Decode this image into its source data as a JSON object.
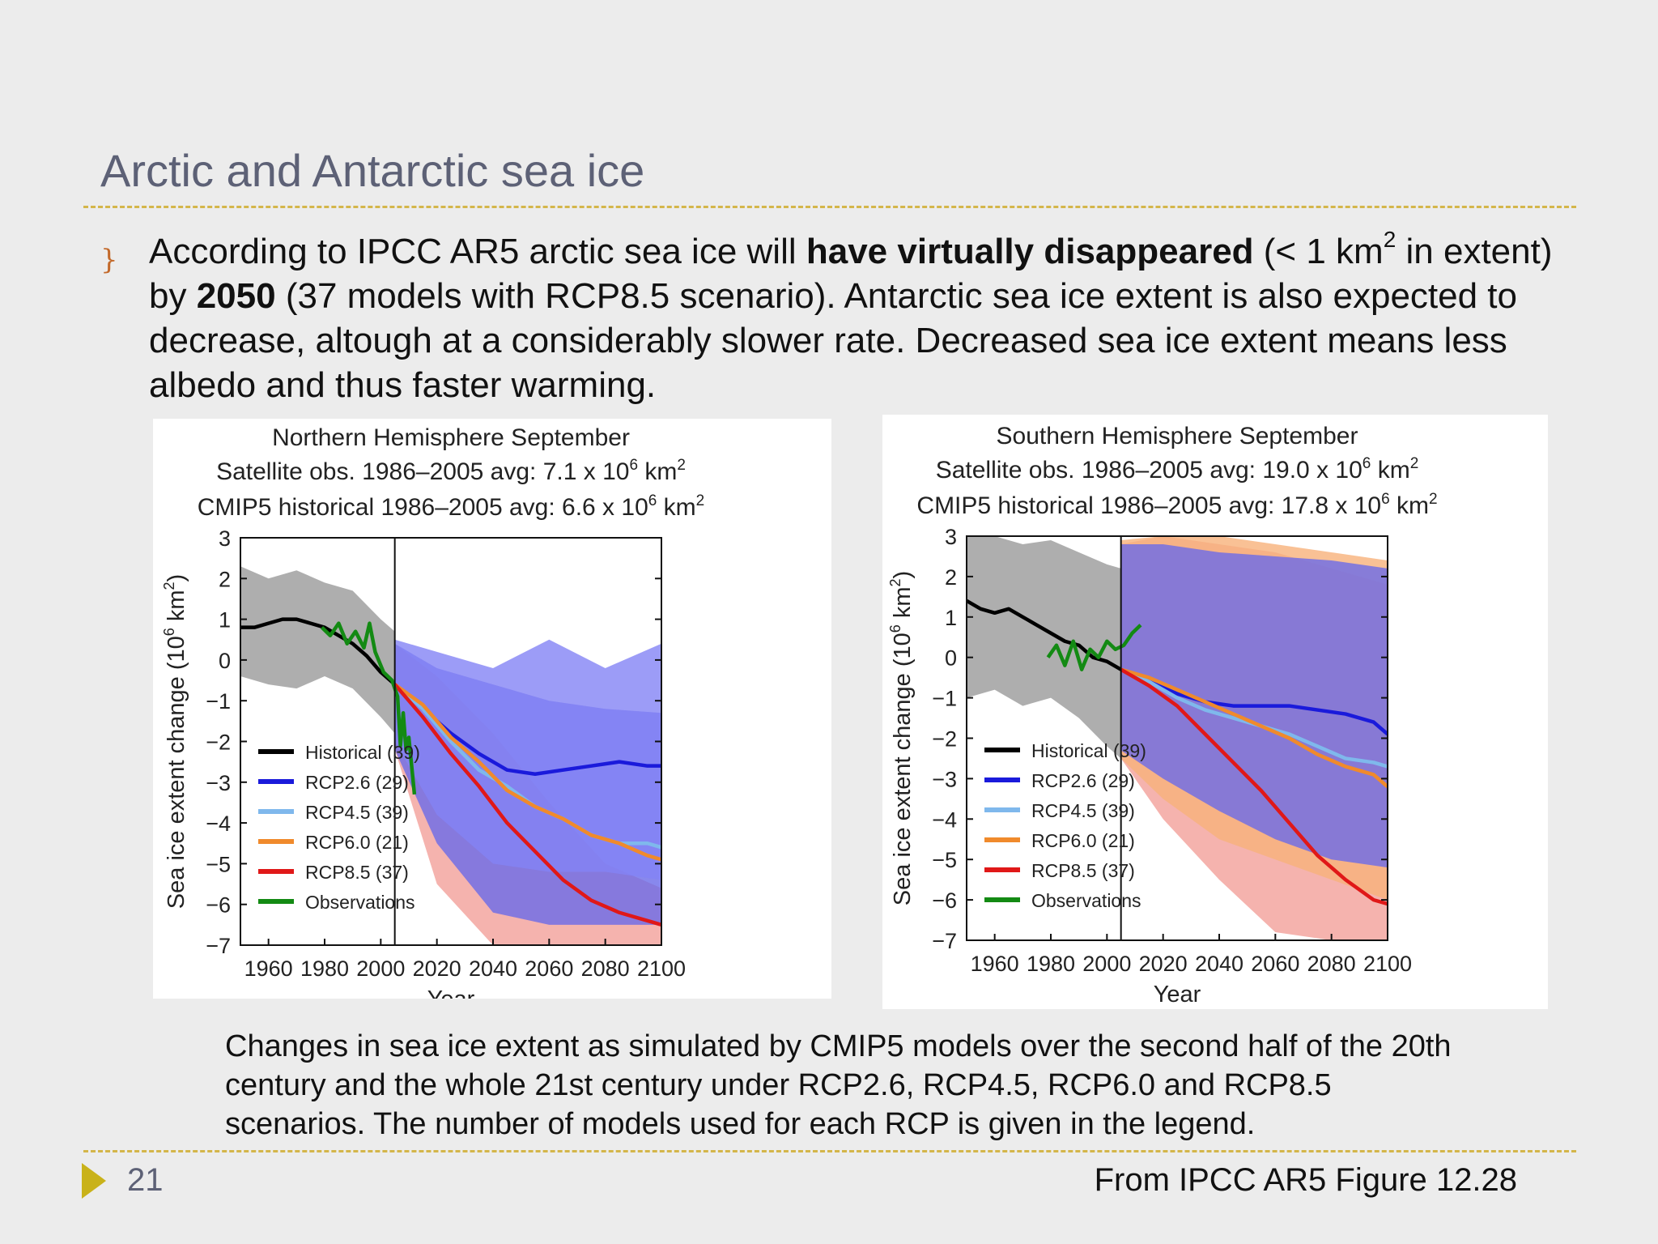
{
  "slide": {
    "title": "Arctic and Antarctic sea ice",
    "bullet_glyph": "}",
    "paragraph": {
      "p1": "According to IPCC AR5 arctic sea ice will ",
      "bold1": "have virtually disappeared",
      "p2": " (< 1 km",
      "sup1": "2",
      "p3": " in extent) by ",
      "bold2": "2050",
      "p4": " (37 models with RCP8.5 scenario).  Antarctic sea ice extent is also expected to decrease, altough at a considerably slower rate. Decreased sea ice extent means less albedo and thus faster warming."
    },
    "caption": "Changes in sea ice extent as simulated by CMIP5 models over the second half of the 20th century and the whole 21st century under RCP2.6, RCP4.5, RCP6.0 and RCP8.5 scenarios. The number of models used for each RCP is given in the legend.",
    "page_number": "21",
    "source": "From IPCC AR5 Figure 12.28",
    "colors": {
      "title": "#5d6176",
      "rule": "#d4b64a",
      "footer_triangle": "#c9b21a",
      "bullet": "#c3692a"
    }
  },
  "chart_data": [
    {
      "type": "line",
      "title": "Northern Hemisphere September",
      "subtitle_lines": [
        {
          "text": "Satellite obs. 1986–2005 avg: 7.1 x 10",
          "sup": "6",
          "unit": " km",
          "unit_sup": "2"
        },
        {
          "text": "CMIP5 historical 1986–2005 avg: 6.6 x 10",
          "sup": "6",
          "unit": " km",
          "unit_sup": "2"
        }
      ],
      "xlabel": "Year",
      "ylabel": "Sea ice extent change (10",
      "ylabel_sup": "6",
      "ylabel_unit": " km",
      "ylabel_unit_sup": "2",
      "ylabel_close": ")",
      "xlim": [
        1950,
        2100
      ],
      "ylim": [
        -7,
        3
      ],
      "xticks": [
        1960,
        1980,
        2000,
        2020,
        2040,
        2060,
        2080,
        2100
      ],
      "yticks": [
        3,
        2,
        1,
        0,
        -1,
        -2,
        -3,
        -4,
        -5,
        -6,
        -7
      ],
      "vline": 2005,
      "legend_position": "bottom-left",
      "legend": [
        {
          "label": "Historical (39)",
          "color": "#000000"
        },
        {
          "label": "RCP2.6 (29)",
          "color": "#1a1adb"
        },
        {
          "label": "RCP4.5 (39)",
          "color": "#7fb8ec"
        },
        {
          "label": "RCP6.0 (21)",
          "color": "#f08a2c"
        },
        {
          "label": "RCP8.5 (37)",
          "color": "#e01818"
        },
        {
          "label": "Observations",
          "color": "#138a13"
        }
      ],
      "bands": [
        {
          "name": "Historical",
          "color": "#9a9a9a",
          "x": [
            1950,
            1960,
            1970,
            1980,
            1990,
            2000,
            2005
          ],
          "lo": [
            -0.4,
            -0.6,
            -0.7,
            -0.4,
            -0.7,
            -1.4,
            -1.8
          ],
          "hi": [
            2.3,
            2.0,
            2.2,
            1.9,
            1.7,
            1.0,
            0.7
          ]
        },
        {
          "name": "RCP8.5",
          "color": "#f2a09a",
          "x": [
            2005,
            2020,
            2040,
            2060,
            2080,
            2100
          ],
          "lo": [
            -2.2,
            -5.5,
            -7.0,
            -7.0,
            -7.0,
            -7.0
          ],
          "hi": [
            0.4,
            -0.4,
            -1.8,
            -3.5,
            -5.0,
            -5.6
          ]
        },
        {
          "name": "RCP4.5",
          "color": "#6a6ae8",
          "x": [
            2005,
            2020,
            2040,
            2060,
            2080,
            2100
          ],
          "lo": [
            -2.2,
            -4.5,
            -6.2,
            -6.5,
            -6.5,
            -6.5
          ],
          "hi": [
            0.4,
            -0.2,
            -0.6,
            -1.0,
            -1.2,
            -1.3
          ]
        },
        {
          "name": "RCP2.6",
          "color": "#8383f5",
          "x": [
            2005,
            2020,
            2040,
            2060,
            2080,
            2100
          ],
          "lo": [
            -2.0,
            -3.8,
            -5.0,
            -5.2,
            -5.2,
            -5.4
          ],
          "hi": [
            0.5,
            0.2,
            -0.2,
            0.5,
            -0.2,
            0.4
          ]
        }
      ],
      "series": [
        {
          "name": "Historical",
          "color": "#000000",
          "x": [
            1950,
            1955,
            1960,
            1965,
            1970,
            1975,
            1980,
            1985,
            1990,
            1995,
            2000,
            2005
          ],
          "values": [
            0.8,
            0.8,
            0.9,
            1.0,
            1.0,
            0.9,
            0.8,
            0.6,
            0.4,
            0.1,
            -0.3,
            -0.6
          ]
        },
        {
          "name": "RCP2.6",
          "color": "#1a1adb",
          "x": [
            2005,
            2015,
            2025,
            2035,
            2045,
            2055,
            2065,
            2075,
            2085,
            2095,
            2100
          ],
          "values": [
            -0.6,
            -1.2,
            -1.8,
            -2.3,
            -2.7,
            -2.8,
            -2.7,
            -2.6,
            -2.5,
            -2.6,
            -2.6
          ]
        },
        {
          "name": "RCP4.5",
          "color": "#7fb8ec",
          "x": [
            2005,
            2015,
            2025,
            2035,
            2045,
            2055,
            2065,
            2075,
            2085,
            2095,
            2100
          ],
          "values": [
            -0.6,
            -1.2,
            -2.0,
            -2.7,
            -3.1,
            -3.6,
            -3.9,
            -4.3,
            -4.5,
            -4.5,
            -4.6
          ]
        },
        {
          "name": "RCP6.0",
          "color": "#f08a2c",
          "x": [
            2005,
            2015,
            2025,
            2035,
            2045,
            2055,
            2065,
            2075,
            2085,
            2095,
            2100
          ],
          "values": [
            -0.6,
            -1.1,
            -1.9,
            -2.5,
            -3.2,
            -3.6,
            -3.9,
            -4.3,
            -4.5,
            -4.8,
            -4.9
          ]
        },
        {
          "name": "RCP8.5",
          "color": "#e01818",
          "x": [
            2005,
            2015,
            2025,
            2035,
            2045,
            2055,
            2065,
            2075,
            2085,
            2095,
            2100
          ],
          "values": [
            -0.6,
            -1.4,
            -2.3,
            -3.1,
            -4.0,
            -4.7,
            -5.4,
            -5.9,
            -6.2,
            -6.4,
            -6.5
          ]
        },
        {
          "name": "Observations",
          "color": "#138a13",
          "x": [
            1979,
            1982,
            1985,
            1988,
            1991,
            1994,
            1996,
            1998,
            2001,
            2004,
            2006,
            2007,
            2008,
            2009,
            2010,
            2012
          ],
          "values": [
            0.8,
            0.6,
            0.9,
            0.4,
            0.7,
            0.3,
            0.9,
            0.2,
            -0.3,
            -0.5,
            -0.9,
            -2.1,
            -1.3,
            -2.2,
            -1.9,
            -3.3
          ]
        }
      ]
    },
    {
      "type": "line",
      "title": "Southern Hemisphere September",
      "subtitle_lines": [
        {
          "text": "Satellite obs. 1986–2005 avg: 19.0 x 10",
          "sup": "6",
          "unit": " km",
          "unit_sup": "2"
        },
        {
          "text": "CMIP5 historical 1986–2005 avg: 17.8 x 10",
          "sup": "6",
          "unit": " km",
          "unit_sup": "2"
        }
      ],
      "xlabel": "Year",
      "ylabel": "Sea ice extent change (10",
      "ylabel_sup": "6",
      "ylabel_unit": " km",
      "ylabel_unit_sup": "2",
      "ylabel_close": ")",
      "xlim": [
        1950,
        2100
      ],
      "ylim": [
        -7,
        3
      ],
      "xticks": [
        1960,
        1980,
        2000,
        2020,
        2040,
        2060,
        2080,
        2100
      ],
      "yticks": [
        3,
        2,
        1,
        0,
        -1,
        -2,
        -3,
        -4,
        -5,
        -6,
        -7
      ],
      "vline": 2005,
      "legend_position": "bottom-left",
      "legend": [
        {
          "label": "Historical (39)",
          "color": "#000000"
        },
        {
          "label": "RCP2.6 (29)",
          "color": "#1a1adb"
        },
        {
          "label": "RCP4.5 (39)",
          "color": "#7fb8ec"
        },
        {
          "label": "RCP6.0 (21)",
          "color": "#f08a2c"
        },
        {
          "label": "RCP8.5 (37)",
          "color": "#e01818"
        },
        {
          "label": "Observations",
          "color": "#138a13"
        }
      ],
      "bands": [
        {
          "name": "Historical",
          "color": "#9a9a9a",
          "x": [
            1950,
            1960,
            1970,
            1980,
            1990,
            2000,
            2005
          ],
          "lo": [
            -1.0,
            -0.8,
            -1.2,
            -1.0,
            -1.5,
            -2.2,
            -2.5
          ],
          "hi": [
            3.0,
            3.0,
            2.8,
            2.9,
            2.6,
            2.3,
            2.2
          ]
        },
        {
          "name": "RCP8.5",
          "color": "#f2a09a",
          "x": [
            2005,
            2020,
            2040,
            2060,
            2080,
            2100
          ],
          "lo": [
            -2.5,
            -4.0,
            -5.5,
            -6.8,
            -7.0,
            -7.0
          ],
          "hi": [
            2.8,
            3.0,
            2.8,
            2.6,
            2.2,
            1.8
          ]
        },
        {
          "name": "RCP6.0",
          "color": "#f7b27a",
          "x": [
            2005,
            2020,
            2040,
            2060,
            2080,
            2100
          ],
          "lo": [
            -2.5,
            -3.5,
            -4.5,
            -5.0,
            -5.5,
            -6.0
          ],
          "hi": [
            2.9,
            3.0,
            3.0,
            2.8,
            2.6,
            2.4
          ]
        },
        {
          "name": "RCP2.6",
          "color": "#6a6ae8",
          "x": [
            2005,
            2020,
            2040,
            2060,
            2080,
            2100
          ],
          "lo": [
            -2.3,
            -3.0,
            -3.8,
            -4.5,
            -5.0,
            -5.2
          ],
          "hi": [
            2.8,
            2.8,
            2.6,
            2.5,
            2.4,
            2.2
          ]
        }
      ],
      "series": [
        {
          "name": "Historical",
          "color": "#000000",
          "x": [
            1950,
            1955,
            1960,
            1965,
            1970,
            1975,
            1980,
            1985,
            1990,
            1995,
            2000,
            2005
          ],
          "values": [
            1.4,
            1.2,
            1.1,
            1.2,
            1.0,
            0.8,
            0.6,
            0.4,
            0.3,
            0.0,
            -0.1,
            -0.3
          ]
        },
        {
          "name": "RCP2.6",
          "color": "#1a1adb",
          "x": [
            2005,
            2015,
            2025,
            2035,
            2045,
            2055,
            2065,
            2075,
            2085,
            2095,
            2100
          ],
          "values": [
            -0.3,
            -0.6,
            -0.9,
            -1.1,
            -1.2,
            -1.2,
            -1.2,
            -1.3,
            -1.4,
            -1.6,
            -1.9
          ]
        },
        {
          "name": "RCP4.5",
          "color": "#7fb8ec",
          "x": [
            2005,
            2015,
            2025,
            2035,
            2045,
            2055,
            2065,
            2075,
            2085,
            2095,
            2100
          ],
          "values": [
            -0.3,
            -0.6,
            -1.0,
            -1.3,
            -1.5,
            -1.7,
            -1.9,
            -2.2,
            -2.5,
            -2.6,
            -2.7
          ]
        },
        {
          "name": "RCP6.0",
          "color": "#f08a2c",
          "x": [
            2005,
            2015,
            2025,
            2035,
            2045,
            2055,
            2065,
            2075,
            2085,
            2095,
            2100
          ],
          "values": [
            -0.3,
            -0.5,
            -0.8,
            -1.1,
            -1.4,
            -1.7,
            -2.0,
            -2.4,
            -2.7,
            -2.9,
            -3.2
          ]
        },
        {
          "name": "RCP8.5",
          "color": "#e01818",
          "x": [
            2005,
            2015,
            2025,
            2035,
            2045,
            2055,
            2065,
            2075,
            2085,
            2095,
            2100
          ],
          "values": [
            -0.3,
            -0.7,
            -1.2,
            -1.9,
            -2.6,
            -3.3,
            -4.1,
            -4.9,
            -5.5,
            -6.0,
            -6.1
          ]
        },
        {
          "name": "Observations",
          "color": "#138a13",
          "x": [
            1979,
            1982,
            1985,
            1988,
            1991,
            1994,
            1997,
            2000,
            2003,
            2006,
            2009,
            2012
          ],
          "values": [
            0.0,
            0.3,
            -0.2,
            0.4,
            -0.3,
            0.2,
            0.0,
            0.4,
            0.2,
            0.3,
            0.6,
            0.8
          ]
        }
      ]
    }
  ]
}
